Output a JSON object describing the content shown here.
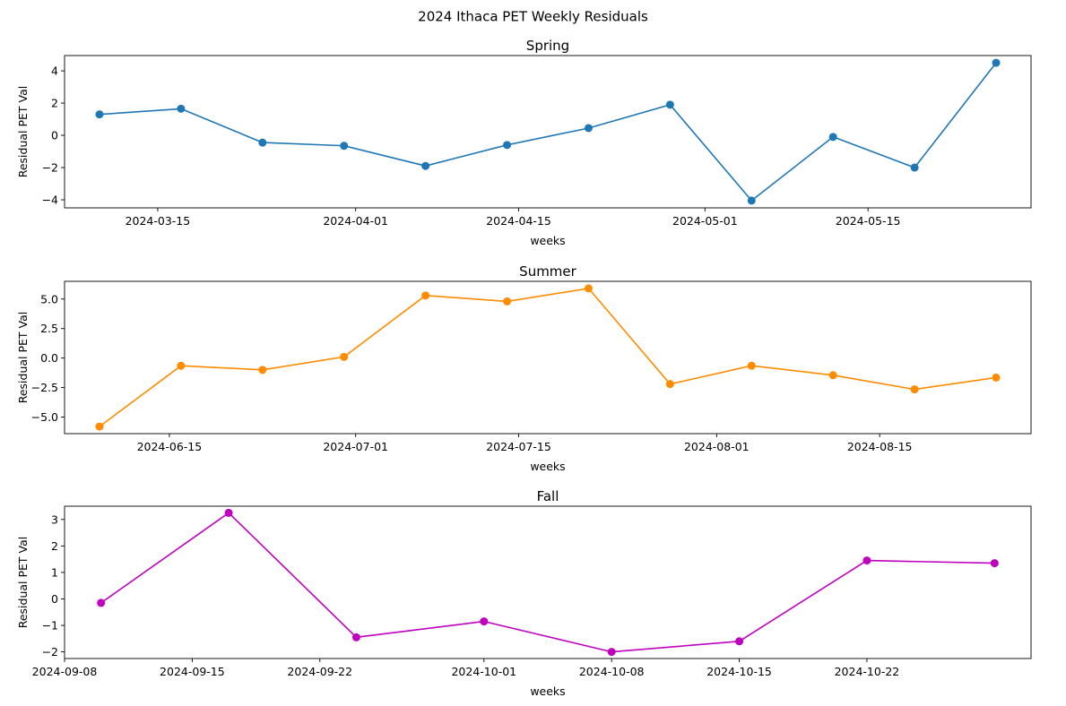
{
  "figure": {
    "title": "2024 Ithaca PET Weekly Residuals"
  },
  "chart_data": [
    {
      "type": "line",
      "title": "Spring",
      "xlabel": "weeks",
      "ylabel": "Residual PET Val",
      "color": "#1f77b4",
      "marker": "circle",
      "grid": false,
      "x": [
        "2024-03-10",
        "2024-03-17",
        "2024-03-24",
        "2024-03-31",
        "2024-04-07",
        "2024-04-14",
        "2024-04-21",
        "2024-04-28",
        "2024-05-05",
        "2024-05-12",
        "2024-05-19",
        "2024-05-26"
      ],
      "values": [
        1.3,
        1.65,
        -0.45,
        -0.65,
        -1.9,
        -0.6,
        0.45,
        1.9,
        -4.05,
        -0.1,
        -2.0,
        4.5
      ],
      "xlim": [
        "2024-03-07",
        "2024-05-29"
      ],
      "ylim": [
        -4.5,
        4.95
      ],
      "xticks": [
        "2024-03-15",
        "2024-04-01",
        "2024-04-15",
        "2024-05-01",
        "2024-05-15"
      ],
      "yticks": [
        -4,
        -2,
        0,
        2,
        4
      ],
      "ytick_labels": [
        "−4",
        "−2",
        "0",
        "2",
        "4"
      ]
    },
    {
      "type": "line",
      "title": "Summer",
      "xlabel": "weeks",
      "ylabel": "Residual PET Val",
      "color": "#ff8c00",
      "marker": "circle",
      "grid": false,
      "x": [
        "2024-06-09",
        "2024-06-16",
        "2024-06-23",
        "2024-06-30",
        "2024-07-07",
        "2024-07-14",
        "2024-07-21",
        "2024-07-28",
        "2024-08-04",
        "2024-08-11",
        "2024-08-18",
        "2024-08-25"
      ],
      "values": [
        -5.8,
        -0.65,
        -1.0,
        0.1,
        5.3,
        4.8,
        5.9,
        -2.2,
        -0.65,
        -1.45,
        -2.65,
        -1.65
      ],
      "xlim": [
        "2024-06-06",
        "2024-08-28"
      ],
      "ylim": [
        -6.4,
        6.5
      ],
      "xticks": [
        "2024-06-15",
        "2024-07-01",
        "2024-07-15",
        "2024-08-01",
        "2024-08-15"
      ],
      "yticks": [
        -5.0,
        -2.5,
        0.0,
        2.5,
        5.0
      ],
      "ytick_labels": [
        "−5.0",
        "−2.5",
        "0.0",
        "2.5",
        "5.0"
      ]
    },
    {
      "type": "line",
      "title": "Fall",
      "xlabel": "weeks",
      "ylabel": "Residual PET Val",
      "color": "#bf00bf",
      "marker": "circle",
      "grid": false,
      "x": [
        "2024-09-10",
        "2024-09-17",
        "2024-09-24",
        "2024-10-01",
        "2024-10-08",
        "2024-10-15",
        "2024-10-22",
        "2024-10-29"
      ],
      "values": [
        -0.15,
        3.25,
        -1.45,
        -0.85,
        -2.0,
        -1.6,
        1.45,
        1.35
      ],
      "xlim": [
        "2024-09-08",
        "2024-10-31"
      ],
      "ylim": [
        -2.25,
        3.5
      ],
      "xticks": [
        "2024-09-08",
        "2024-09-15",
        "2024-09-22",
        "2024-10-01",
        "2024-10-08",
        "2024-10-15",
        "2024-10-22"
      ],
      "yticks": [
        -2,
        -1,
        0,
        1,
        2,
        3
      ],
      "ytick_labels": [
        "−2",
        "−1",
        "0",
        "1",
        "2",
        "3"
      ]
    }
  ]
}
